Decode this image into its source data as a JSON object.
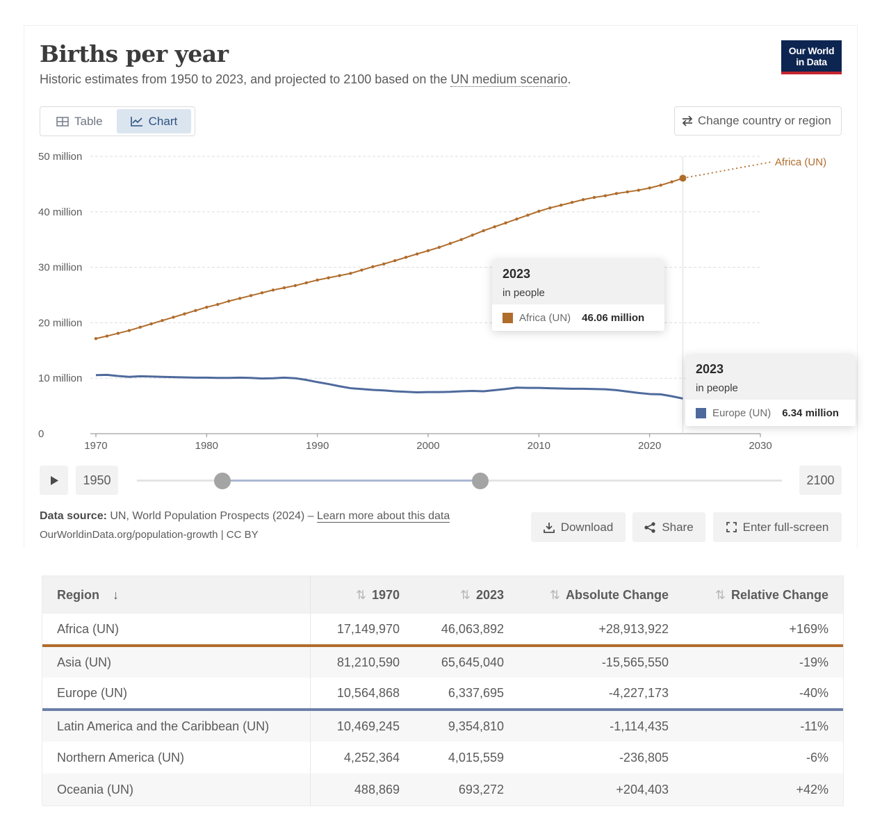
{
  "header": {
    "title": "Births per year",
    "subtitle_before": "Historic estimates from 1950 to 2023, and projected to 2100 based on the ",
    "subtitle_link": "UN medium scenario",
    "subtitle_after": ".",
    "logo_line1": "Our World",
    "logo_line2": "in Data"
  },
  "controls": {
    "tab_table": "Table",
    "tab_chart": "Chart",
    "active_tab": "Chart",
    "change_country": "Change country or region"
  },
  "colors": {
    "africa": "#b06c2b",
    "europe": "#4e6a9c",
    "grid": "#dddddd",
    "logo_bg": "#0d2551",
    "logo_accent": "#c4242f"
  },
  "icons": {
    "table": "table-icon",
    "chart": "line-chart-icon",
    "change": "swap-arrows-icon",
    "play": "play-icon",
    "download": "download-icon",
    "share": "share-icon",
    "fullscreen": "fullscreen-icon"
  },
  "chart_data": {
    "type": "line",
    "title": "Births per year",
    "xlabel": "",
    "ylabel": "",
    "xlim": [
      1969.5,
      2030
    ],
    "ylim": [
      0,
      50000000
    ],
    "x_ticks": [
      1970,
      1980,
      1990,
      2000,
      2010,
      2020,
      2030
    ],
    "y_ticks": [
      0,
      10000000,
      20000000,
      30000000,
      40000000,
      50000000
    ],
    "y_tick_labels": [
      "0",
      "10 million",
      "20 million",
      "30 million",
      "40 million",
      "50 million"
    ],
    "grid": true,
    "highlight_year": 2023,
    "series": [
      {
        "name": "Africa (UN)",
        "color": "#b06c2b",
        "x": [
          1970,
          1971,
          1972,
          1973,
          1974,
          1975,
          1976,
          1977,
          1978,
          1979,
          1980,
          1981,
          1982,
          1983,
          1984,
          1985,
          1986,
          1987,
          1988,
          1989,
          1990,
          1991,
          1992,
          1993,
          1994,
          1995,
          1996,
          1997,
          1998,
          1999,
          2000,
          2001,
          2002,
          2003,
          2004,
          2005,
          2006,
          2007,
          2008,
          2009,
          2010,
          2011,
          2012,
          2013,
          2014,
          2015,
          2016,
          2017,
          2018,
          2019,
          2020,
          2021,
          2022,
          2023
        ],
        "values": [
          17149970,
          17600000,
          18100000,
          18600000,
          19200000,
          19800000,
          20400000,
          21000000,
          21600000,
          22200000,
          22800000,
          23300000,
          23900000,
          24400000,
          24900000,
          25400000,
          25900000,
          26300000,
          26700000,
          27200000,
          27700000,
          28100000,
          28500000,
          28900000,
          29500000,
          30100000,
          30600000,
          31200000,
          31800000,
          32400000,
          33000000,
          33600000,
          34300000,
          35000000,
          35800000,
          36600000,
          37300000,
          38000000,
          38700000,
          39400000,
          40100000,
          40700000,
          41200000,
          41700000,
          42200000,
          42600000,
          42900000,
          43300000,
          43600000,
          43900000,
          44300000,
          44800000,
          45400000,
          46063892
        ],
        "projection_x": [
          2023,
          2031
        ],
        "projection_values": [
          46063892,
          49000000
        ]
      },
      {
        "name": "Europe (UN)",
        "color": "#4e6a9c",
        "x": [
          1970,
          1971,
          1972,
          1973,
          1974,
          1975,
          1976,
          1977,
          1978,
          1979,
          1980,
          1981,
          1982,
          1983,
          1984,
          1985,
          1986,
          1987,
          1988,
          1989,
          1990,
          1991,
          1992,
          1993,
          1994,
          1995,
          1996,
          1997,
          1998,
          1999,
          2000,
          2001,
          2002,
          2003,
          2004,
          2005,
          2006,
          2007,
          2008,
          2009,
          2010,
          2011,
          2012,
          2013,
          2014,
          2015,
          2016,
          2017,
          2018,
          2019,
          2020,
          2021,
          2022,
          2023
        ],
        "values": [
          10564868,
          10600000,
          10400000,
          10250000,
          10350000,
          10300000,
          10250000,
          10200000,
          10150000,
          10100000,
          10100000,
          10050000,
          10050000,
          10100000,
          10050000,
          9950000,
          10000000,
          10100000,
          10000000,
          9700000,
          9300000,
          8950000,
          8550000,
          8200000,
          8050000,
          7900000,
          7800000,
          7650000,
          7550000,
          7450000,
          7500000,
          7500000,
          7550000,
          7650000,
          7700000,
          7650000,
          7850000,
          8050000,
          8300000,
          8250000,
          8250000,
          8200000,
          8150000,
          8100000,
          8100000,
          8050000,
          8000000,
          7850000,
          7600000,
          7350000,
          7150000,
          7100000,
          6750000,
          6337695
        ]
      }
    ]
  },
  "tooltips": [
    {
      "year": "2023",
      "unit": "in people",
      "name": "Africa (UN)",
      "value": "46.06 million"
    },
    {
      "year": "2023",
      "unit": "in people",
      "name": "Europe (UN)",
      "value": "6.34 million"
    }
  ],
  "timeline": {
    "start": "1950",
    "end": "2100",
    "selected_start": 1970,
    "selected_end": 2023
  },
  "footer": {
    "source_label": "Data source:",
    "source_text": " UN, World Population Prospects (2024) – ",
    "source_link": "Learn more about this data",
    "url": "OurWorldinData.org/population-growth | CC BY",
    "download": "Download",
    "share": "Share",
    "fullscreen": "Enter full-screen"
  },
  "table": {
    "headers": [
      "Region",
      "1970",
      "2023",
      "Absolute Change",
      "Relative Change"
    ],
    "rows": [
      {
        "region": "Africa (UN)",
        "v1970": "17,149,970",
        "v2023": "46,063,892",
        "abs": "+28,913,922",
        "rel": "+169%"
      },
      {
        "region": "Asia (UN)",
        "v1970": "81,210,590",
        "v2023": "65,645,040",
        "abs": "-15,565,550",
        "rel": "-19%"
      },
      {
        "region": "Europe (UN)",
        "v1970": "10,564,868",
        "v2023": "6,337,695",
        "abs": "-4,227,173",
        "rel": "-40%"
      },
      {
        "region": "Latin America and the Caribbean (UN)",
        "v1970": "10,469,245",
        "v2023": "9,354,810",
        "abs": "-1,114,435",
        "rel": "-11%"
      },
      {
        "region": "Northern America (UN)",
        "v1970": "4,252,364",
        "v2023": "4,015,559",
        "abs": "-236,805",
        "rel": "-6%"
      },
      {
        "region": "Oceania (UN)",
        "v1970": "488,869",
        "v2023": "693,272",
        "abs": "+204,403",
        "rel": "+42%"
      }
    ]
  }
}
